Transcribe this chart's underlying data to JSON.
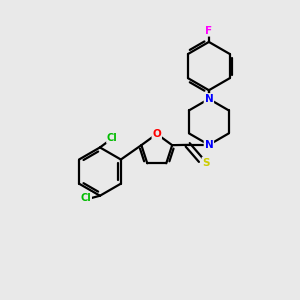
{
  "background_color": "#e9e9e9",
  "bond_color": "#000000",
  "atom_colors": {
    "N": "#0000ff",
    "O": "#ff0000",
    "S": "#cccc00",
    "F": "#ff00ff",
    "Cl": "#00bb00"
  },
  "line_width": 1.6,
  "figsize": [
    3.0,
    3.0
  ],
  "dpi": 100
}
